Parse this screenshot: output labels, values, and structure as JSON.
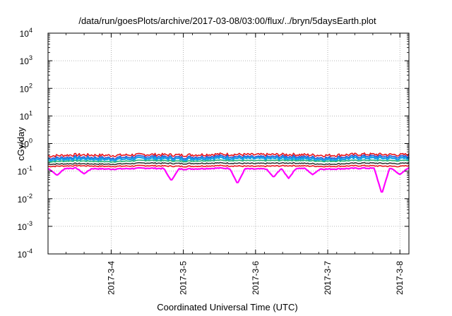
{
  "chart_data": {
    "type": "area",
    "title": "/data/run/goesPlots/archive/2017-03-08/03:00/flux/../bryn/5daysEarth.plot",
    "xlabel": "Coordinated Universal Time (UTC)",
    "ylabel": "cGy/day",
    "yscale": "log",
    "ylim": [
      0.0001,
      10000
    ],
    "xlim": [
      "2017-03-03 03:00",
      "2017-03-08 03:00"
    ],
    "grid": true,
    "xtick_labels": [
      "2017-3-4",
      "2017-3-5",
      "2017-3-6",
      "2017-3-7",
      "2017-3-8"
    ],
    "ytick_labels": [
      {
        "base": "10",
        "exp": "4"
      },
      {
        "base": "10",
        "exp": "3"
      },
      {
        "base": "10",
        "exp": "2"
      },
      {
        "base": "10",
        "exp": "1"
      },
      {
        "base": "10",
        "exp": "0"
      },
      {
        "base": "10",
        "exp": "-1"
      },
      {
        "base": "10",
        "exp": "-2"
      },
      {
        "base": "10",
        "exp": "-3"
      },
      {
        "base": "10",
        "exp": "-4"
      }
    ],
    "x": [
      "2017-03-03 03:00",
      "2017-03-03 12:00",
      "2017-03-04 00:00",
      "2017-03-04 12:00",
      "2017-03-05 00:00",
      "2017-03-05 12:00",
      "2017-03-06 00:00",
      "2017-03-06 12:00",
      "2017-03-07 00:00",
      "2017-03-07 12:00",
      "2017-03-08 00:00",
      "2017-03-08 03:00"
    ],
    "series": [
      {
        "color": "#e8171f",
        "values": [
          0.36,
          0.4,
          0.38,
          0.41,
          0.39,
          0.42,
          0.4,
          0.41,
          0.38,
          0.42,
          0.4,
          0.41
        ]
      },
      {
        "color": "#2a55d6",
        "values": [
          0.3,
          0.33,
          0.31,
          0.35,
          0.32,
          0.36,
          0.33,
          0.35,
          0.31,
          0.36,
          0.34,
          0.35
        ]
      },
      {
        "color": "#12a3e8",
        "values": [
          0.26,
          0.29,
          0.27,
          0.3,
          0.28,
          0.31,
          0.29,
          0.3,
          0.27,
          0.31,
          0.29,
          0.3
        ]
      },
      {
        "color": "#22b573",
        "values": [
          0.22,
          0.24,
          0.22,
          0.25,
          0.23,
          0.25,
          0.24,
          0.25,
          0.23,
          0.25,
          0.24,
          0.25
        ]
      },
      {
        "color": "#3a3a3a",
        "values": [
          0.18,
          0.19,
          0.18,
          0.2,
          0.19,
          0.2,
          0.19,
          0.2,
          0.18,
          0.2,
          0.19,
          0.2
        ]
      },
      {
        "color": "#e8171f",
        "values": [
          0.15,
          0.16,
          0.15,
          0.16,
          0.15,
          0.16,
          0.15,
          0.16,
          0.15,
          0.16,
          0.15,
          0.16
        ]
      },
      {
        "color": "#ff00ff",
        "values": [
          0.12,
          0.13,
          0.12,
          0.13,
          0.12,
          0.13,
          0.12,
          0.13,
          0.12,
          0.13,
          0.12,
          0.13
        ]
      }
    ],
    "dips": [
      {
        "x": "2017-03-03 06:00",
        "value": 0.07
      },
      {
        "x": "2017-03-03 15:00",
        "value": 0.08
      },
      {
        "x": "2017-03-04 20:00",
        "value": 0.045
      },
      {
        "x": "2017-03-05 18:00",
        "value": 0.035
      },
      {
        "x": "2017-03-06 06:00",
        "value": 0.06
      },
      {
        "x": "2017-03-06 11:00",
        "value": 0.055
      },
      {
        "x": "2017-03-06 19:00",
        "value": 0.075
      },
      {
        "x": "2017-03-07 18:00",
        "value": 0.015
      },
      {
        "x": "2017-03-08 00:00",
        "value": 0.075
      }
    ]
  }
}
